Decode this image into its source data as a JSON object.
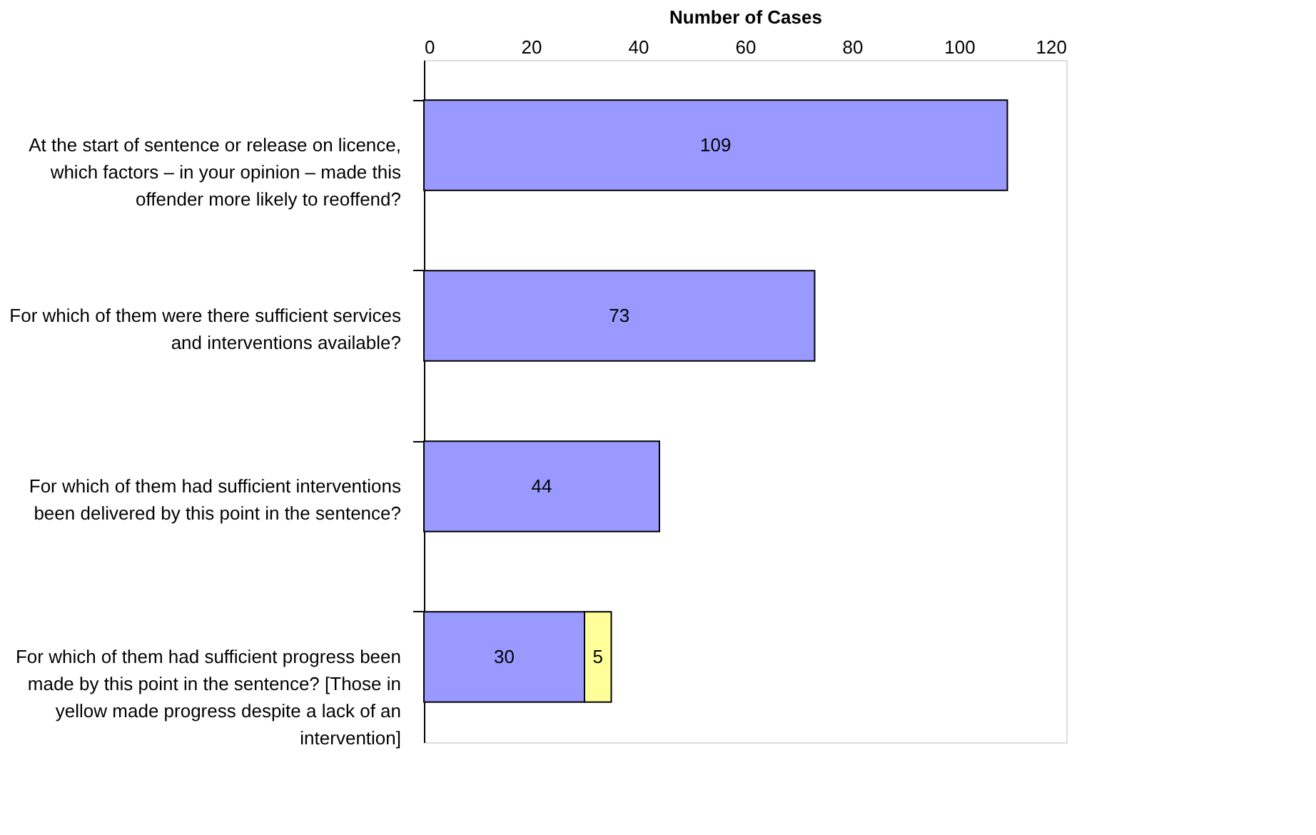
{
  "chart_data": {
    "type": "bar",
    "orientation": "horizontal",
    "stacked": true,
    "xlabel": "Number of Cases",
    "categories": [
      "At the start of sentence or release on licence, which factors – in your opinion – made this offender more likely to reoffend?",
      "For which of them were there sufficient services and interventions available?",
      "For which of them had sufficient interventions been delivered by this point in the sentence?",
      "For which of them had sufficient progress been made by this point in the sentence? [Those in yellow made progress despite a lack of an intervention]"
    ],
    "series": [
      {
        "color": "#9999ff",
        "values": [
          109,
          73,
          44,
          30
        ]
      },
      {
        "color": "#ffff99",
        "values": [
          null,
          null,
          null,
          5
        ]
      }
    ],
    "xlim": [
      0,
      120
    ],
    "xticks": [
      0,
      20,
      40,
      60,
      80,
      100,
      120
    ],
    "grid": false,
    "legend": false,
    "data_labels": true
  }
}
